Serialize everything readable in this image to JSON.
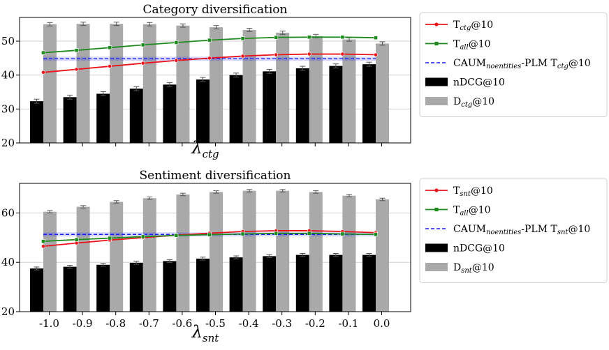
{
  "chart_data": [
    {
      "type": "bar",
      "title": "Category diversification",
      "xlabel": "λ",
      "xlabel_sub": "ctg",
      "ylim": [
        20,
        57
      ],
      "yticks": [
        20,
        30,
        40,
        50
      ],
      "grid": true,
      "legend_position": "right",
      "categories": [
        "-1.0",
        "-0.9",
        "-0.8",
        "-0.7",
        "-0.6",
        "-0.5",
        "-0.4",
        "-0.3",
        "-0.2",
        "-0.1",
        "0.0"
      ],
      "series": [
        {
          "name": "nDCG@10",
          "kind": "bar",
          "color": "#000000",
          "values": [
            32.3,
            33.5,
            34.5,
            36.0,
            37.2,
            38.7,
            40.0,
            41.1,
            42.0,
            42.7,
            43.2
          ]
        },
        {
          "name": "D@10",
          "name_sub": "ctg",
          "kind": "bar",
          "color": "#a9a9a9",
          "values": [
            55.0,
            55.1,
            55.1,
            55.0,
            54.6,
            54.1,
            53.3,
            52.5,
            51.5,
            50.5,
            49.3
          ]
        },
        {
          "name": "T@10",
          "name_sub": "ctg",
          "kind": "line",
          "color": "#e8141a",
          "marker": "circle",
          "values": [
            40.8,
            41.7,
            42.6,
            43.5,
            44.3,
            45.0,
            45.6,
            46.0,
            46.2,
            46.2,
            46.0
          ]
        },
        {
          "name": "T@10",
          "name_sub": "all",
          "kind": "line",
          "color": "#1f8a1f",
          "marker": "square",
          "values": [
            46.6,
            47.3,
            48.1,
            48.9,
            49.6,
            50.3,
            50.8,
            51.1,
            51.2,
            51.2,
            51.0
          ]
        },
        {
          "name": "CAUM-PLM T@10",
          "name_parts": [
            "CAUM",
            "noentities",
            "-PLM T",
            "ctg",
            "@10"
          ],
          "kind": "hline",
          "color": "#1a1aff",
          "value": 44.8
        }
      ]
    },
    {
      "type": "bar",
      "title": "Sentiment diversification",
      "xlabel": "λ",
      "xlabel_sub": "snt",
      "ylim": [
        20,
        72
      ],
      "yticks": [
        20,
        40,
        60
      ],
      "grid": true,
      "legend_position": "right",
      "categories": [
        "-1.0",
        "-0.9",
        "-0.8",
        "-0.7",
        "-0.6",
        "-0.5",
        "-0.4",
        "-0.3",
        "-0.2",
        "-0.1",
        "0.0"
      ],
      "series": [
        {
          "name": "nDCG@10",
          "kind": "bar",
          "color": "#000000",
          "values": [
            37.5,
            38.2,
            39.0,
            39.8,
            40.5,
            41.5,
            42.0,
            42.5,
            43.0,
            43.0,
            43.0
          ]
        },
        {
          "name": "D@10",
          "name_sub": "snt",
          "kind": "bar",
          "color": "#a9a9a9",
          "values": [
            60.5,
            62.5,
            64.5,
            66.0,
            67.5,
            68.5,
            69.0,
            69.0,
            68.5,
            67.0,
            65.5
          ]
        },
        {
          "name": "T@10",
          "name_sub": "snt",
          "kind": "line",
          "color": "#e8141a",
          "marker": "circle",
          "values": [
            46.5,
            47.8,
            49.0,
            50.0,
            51.0,
            51.8,
            52.5,
            52.8,
            52.8,
            52.5,
            52.0
          ]
        },
        {
          "name": "T@10",
          "name_sub": "all",
          "kind": "line",
          "color": "#1f8a1f",
          "marker": "square",
          "values": [
            48.5,
            49.2,
            49.8,
            50.4,
            50.9,
            51.2,
            51.5,
            51.7,
            51.7,
            51.5,
            51.3
          ]
        },
        {
          "name": "CAUM-PLM T@10",
          "name_parts": [
            "CAUM",
            "noentities",
            "-PLM T",
            "snt",
            "@10"
          ],
          "kind": "hline",
          "color": "#1a1aff",
          "value": 51.3
        }
      ]
    }
  ]
}
